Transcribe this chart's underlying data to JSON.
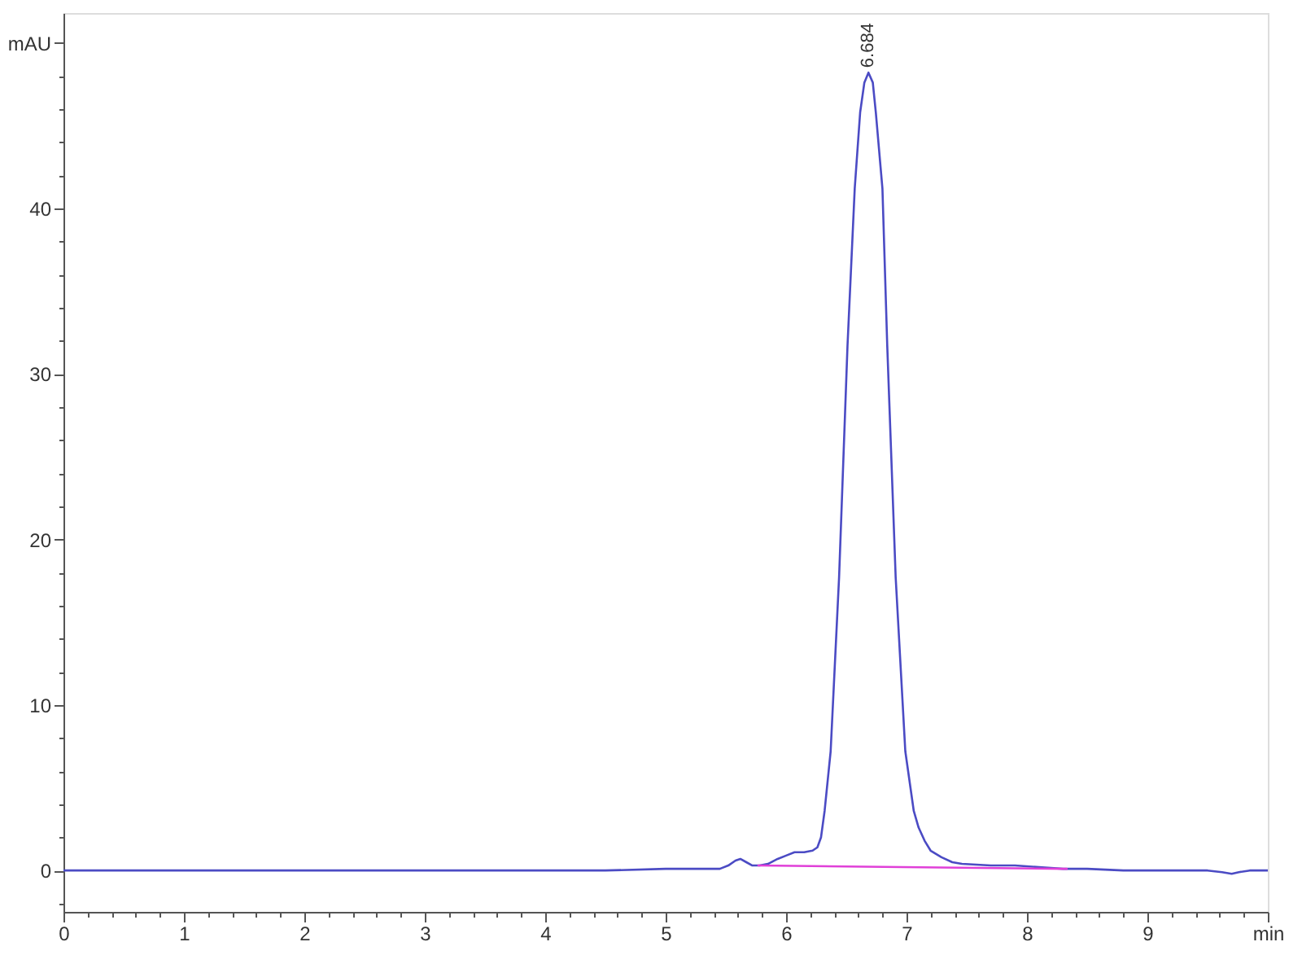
{
  "chart_data": {
    "type": "line",
    "xlim": [
      0,
      10
    ],
    "ylim": [
      -2.5,
      51.8
    ],
    "xticks": [
      0,
      {
        "value": 0.2,
        "label": null
      },
      {
        "value": 0.4,
        "label": null
      },
      {
        "value": 0.6,
        "label": null
      },
      {
        "value": 0.8,
        "label": null
      },
      1,
      {
        "value": 1.2,
        "label": null
      },
      {
        "value": 1.4,
        "label": null
      },
      {
        "value": 1.6,
        "label": null
      },
      {
        "value": 1.8,
        "label": null
      },
      2,
      {
        "value": 2.2,
        "label": null
      },
      {
        "value": 2.4,
        "label": null
      },
      {
        "value": 2.6,
        "label": null
      },
      {
        "value": 2.8,
        "label": null
      },
      3,
      {
        "value": 3.2,
        "label": null
      },
      {
        "value": 3.4,
        "label": null
      },
      {
        "value": 3.6,
        "label": null
      },
      {
        "value": 3.8,
        "label": null
      },
      4,
      {
        "value": 4.2,
        "label": null
      },
      {
        "value": 4.4,
        "label": null
      },
      {
        "value": 4.6,
        "label": null
      },
      {
        "value": 4.8,
        "label": null
      },
      5,
      {
        "value": 5.2,
        "label": null
      },
      {
        "value": 5.4,
        "label": null
      },
      {
        "value": 5.6,
        "label": null
      },
      {
        "value": 5.8,
        "label": null
      },
      6,
      {
        "value": 6.2,
        "label": null
      },
      {
        "value": 6.4,
        "label": null
      },
      {
        "value": 6.6,
        "label": null
      },
      {
        "value": 6.8,
        "label": null
      },
      7,
      {
        "value": 7.2,
        "label": null
      },
      {
        "value": 7.4,
        "label": null
      },
      {
        "value": 7.6,
        "label": null
      },
      {
        "value": 7.8,
        "label": null
      },
      8,
      {
        "value": 8.2,
        "label": null
      },
      {
        "value": 8.4,
        "label": null
      },
      {
        "value": 8.6,
        "label": null
      },
      {
        "value": 8.8,
        "label": null
      },
      9,
      {
        "value": 9.2,
        "label": null
      },
      {
        "value": 9.4,
        "label": null
      },
      {
        "value": 9.6,
        "label": null
      },
      {
        "value": 9.8,
        "label": null
      },
      {
        "value": 10,
        "label": "min"
      }
    ],
    "yticks": [
      {
        "value": -2,
        "label": null
      },
      0,
      {
        "value": 2,
        "label": null
      },
      {
        "value": 4,
        "label": null
      },
      {
        "value": 6,
        "label": null
      },
      {
        "value": 8,
        "label": null
      },
      10,
      {
        "value": 12,
        "label": null
      },
      {
        "value": 14,
        "label": null
      },
      {
        "value": 16,
        "label": null
      },
      {
        "value": 18,
        "label": null
      },
      20,
      {
        "value": 22,
        "label": null
      },
      {
        "value": 24,
        "label": null
      },
      {
        "value": 26,
        "label": null
      },
      {
        "value": 28,
        "label": null
      },
      30,
      {
        "value": 32,
        "label": null
      },
      {
        "value": 34,
        "label": null
      },
      {
        "value": 36,
        "label": null
      },
      {
        "value": 38,
        "label": null
      },
      40,
      {
        "value": 42,
        "label": null
      },
      {
        "value": 44,
        "label": null
      },
      {
        "value": 46,
        "label": null
      },
      {
        "value": 48,
        "label": null
      },
      {
        "value": 50,
        "label": "mAU"
      }
    ],
    "series": [
      {
        "color": "#4b4bc4",
        "x": [
          0,
          0.5,
          1.0,
          1.5,
          2.0,
          2.5,
          3.0,
          3.5,
          4.0,
          4.5,
          5.0,
          5.3,
          5.45,
          5.52,
          5.58,
          5.62,
          5.67,
          5.72,
          5.78,
          5.85,
          5.93,
          6.0,
          6.07,
          6.15,
          6.22,
          6.26,
          6.29,
          6.32,
          6.37,
          6.44,
          6.51,
          6.57,
          6.615,
          6.65,
          6.684,
          6.72,
          6.745,
          6.8,
          6.84,
          6.91,
          6.99,
          7.06,
          7.1,
          7.15,
          7.2,
          7.29,
          7.38,
          7.46,
          7.7,
          7.9,
          8.1,
          8.3,
          8.5,
          8.8,
          9.2,
          9.5,
          9.62,
          9.7,
          9.76,
          9.85,
          10.0
        ],
        "values": [
          0.0,
          0.0,
          0.0,
          0.0,
          0.0,
          0.0,
          0.0,
          0.0,
          0.0,
          0.0,
          0.1,
          0.1,
          0.1,
          0.3,
          0.6,
          0.7,
          0.5,
          0.3,
          0.3,
          0.4,
          0.7,
          0.9,
          1.1,
          1.1,
          1.2,
          1.4,
          2.0,
          3.6,
          7.2,
          17.7,
          31.7,
          41.2,
          45.8,
          47.6,
          48.2,
          47.6,
          45.8,
          41.2,
          31.7,
          17.7,
          7.2,
          3.6,
          2.6,
          1.8,
          1.2,
          0.8,
          0.5,
          0.4,
          0.3,
          0.3,
          0.2,
          0.1,
          0.1,
          0.0,
          0.0,
          0.0,
          -0.1,
          -0.2,
          -0.1,
          0.0,
          0.0
        ]
      },
      {
        "color": "#e040d8",
        "x": [
          5.77,
          8.33
        ],
        "values": [
          0.3,
          0.1
        ]
      }
    ],
    "annotations": [
      {
        "text": "6.684",
        "x": 6.684,
        "y": 48.2
      }
    ]
  }
}
